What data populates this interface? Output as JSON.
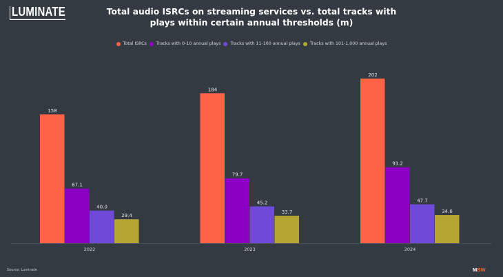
{
  "brand": {
    "logo_text": "LUMINATE",
    "footer_logo_m": "M",
    "footer_logo_bw": "BW"
  },
  "source_text": "Source: Luminate",
  "chart_data": {
    "type": "bar",
    "title_line1": "Total audio ISRCs on streaming services vs. total tracks with",
    "title_line2": "plays within certain annual thresholds (m)",
    "xlabel": "",
    "ylabel": "",
    "categories": [
      "2022",
      "2023",
      "2024"
    ],
    "series": [
      {
        "name": "Total ISRCs",
        "color": "#ff6347",
        "values": [
          158,
          184,
          202
        ],
        "labels": [
          "158",
          "184",
          "202"
        ]
      },
      {
        "name": "Tracks with 0-10 annual plays",
        "color": "#8b00c2",
        "values": [
          67.1,
          79.7,
          93.2
        ],
        "labels": [
          "67.1",
          "79.7",
          "93.2"
        ]
      },
      {
        "name": "Tracks with 11-100 annual plays",
        "color": "#6f4ad8",
        "values": [
          40.0,
          45.2,
          47.7
        ],
        "labels": [
          "40.0",
          "45.2",
          "47.7"
        ]
      },
      {
        "name": "Tracks with 101-1,000 annual plays",
        "color": "#b5a533",
        "values": [
          29.4,
          33.7,
          34.6
        ],
        "labels": [
          "29.4",
          "33.7",
          "34.6"
        ]
      }
    ],
    "ylim": [
      0,
      210
    ],
    "grid": false,
    "y_axis_visible": false,
    "legend_position": "top-center"
  }
}
